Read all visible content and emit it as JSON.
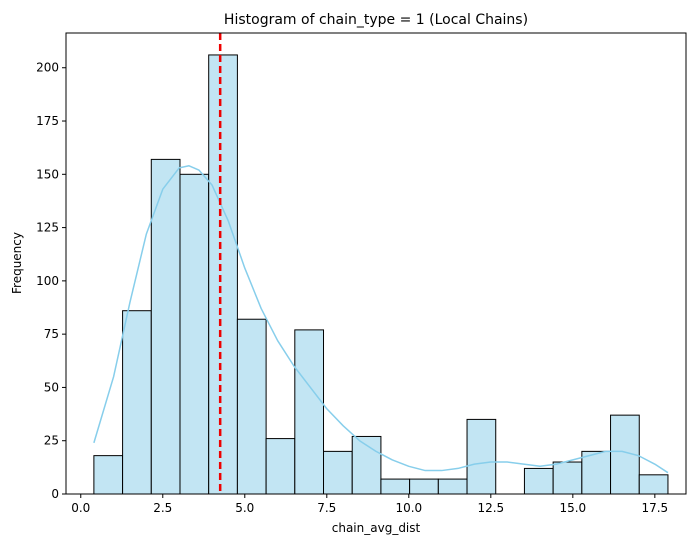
{
  "chart_data": {
    "type": "bar",
    "title": "Histogram of chain_type = 1 (Local Chains)",
    "xlabel": "chain_avg_dist",
    "ylabel": "Frequency",
    "xlim": [
      -0.45,
      18.45
    ],
    "ylim": [
      0,
      216.3
    ],
    "xticks": [
      0.0,
      2.5,
      5.0,
      7.5,
      10.0,
      12.5,
      15.0,
      17.5
    ],
    "xtick_labels": [
      "0.0",
      "2.5",
      "5.0",
      "7.5",
      "10.0",
      "12.5",
      "15.0",
      "17.5"
    ],
    "yticks": [
      0,
      25,
      50,
      75,
      100,
      125,
      150,
      175,
      200
    ],
    "ytick_labels": [
      "0",
      "25",
      "50",
      "75",
      "100",
      "125",
      "150",
      "175",
      "200"
    ],
    "bins": {
      "edges": [
        0.4,
        1.275,
        2.15,
        3.025,
        3.9,
        4.775,
        5.65,
        6.525,
        7.4,
        8.275,
        9.15,
        10.025,
        10.9,
        11.775,
        12.65,
        13.525,
        14.4,
        15.275,
        16.15,
        17.025,
        17.9
      ],
      "counts": [
        18,
        86,
        157,
        150,
        206,
        82,
        26,
        77,
        20,
        27,
        7,
        7,
        7,
        35,
        0,
        12,
        15,
        20,
        37,
        9
      ]
    },
    "kde": {
      "x": [
        0.4,
        1.0,
        1.5,
        2.0,
        2.5,
        3.0,
        3.3,
        3.6,
        4.0,
        4.5,
        5.0,
        5.5,
        6.0,
        6.5,
        7.0,
        7.5,
        8.0,
        8.5,
        9.0,
        9.5,
        10.0,
        10.5,
        11.0,
        11.5,
        12.0,
        12.5,
        13.0,
        13.5,
        14.0,
        14.5,
        15.0,
        15.5,
        16.0,
        16.5,
        17.0,
        17.5,
        17.9
      ],
      "y": [
        24,
        55,
        90,
        122,
        143,
        153,
        154,
        152,
        145,
        128,
        106,
        87,
        72,
        60,
        50,
        40,
        32,
        25,
        20,
        16,
        13,
        11,
        11,
        12,
        14,
        15,
        15,
        14,
        13,
        14,
        16,
        18,
        20,
        20,
        18,
        14,
        10
      ]
    },
    "vline": {
      "x": 4.25,
      "style": "dashed"
    },
    "colors": {
      "bar_fill": "#c2e5f3",
      "bar_edge": "#000000",
      "kde": "#87ceeb",
      "vline": "#ee0000"
    },
    "grid": false
  }
}
